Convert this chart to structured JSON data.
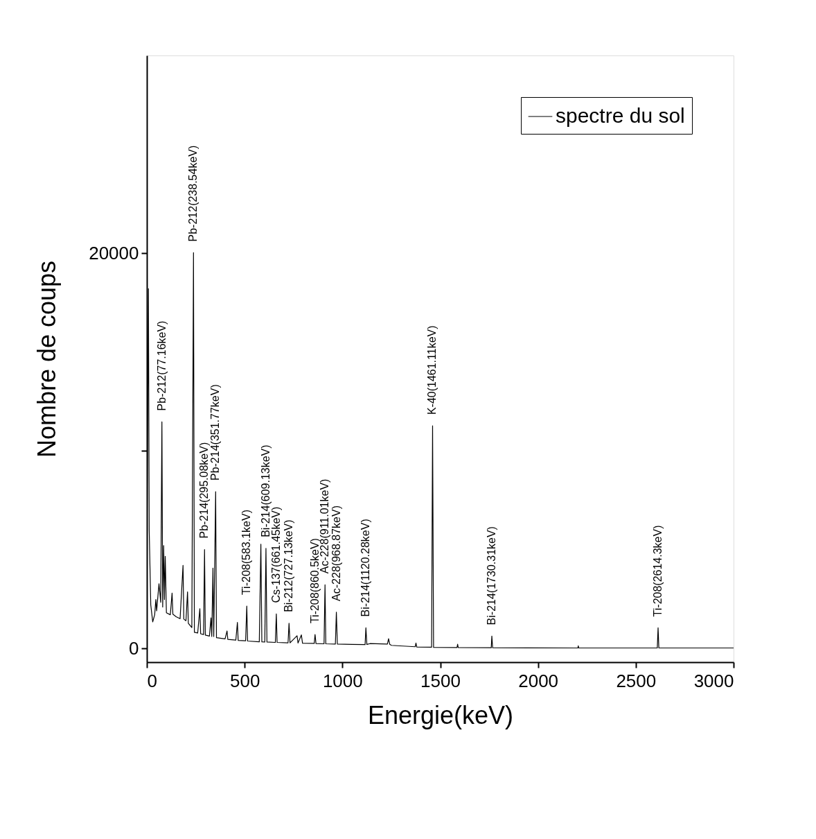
{
  "chart_data": {
    "type": "line",
    "xlabel": "Energie(keV)",
    "ylabel": "Nombre de coups",
    "xlim": [
      0,
      3000
    ],
    "xticks": [
      0,
      500,
      1000,
      1500,
      2000,
      2500,
      3000
    ],
    "ylim": [
      -700,
      30000
    ],
    "yticks": [
      0,
      {
        "value": 10000,
        "label": null
      },
      20000
    ],
    "grid": false,
    "legend": "top right",
    "marker": "none",
    "line_style": "solid",
    "series": [
      {
        "name": "spectre du sol",
        "color": "#000000",
        "x": [
          0,
          8,
          12,
          20,
          30,
          40,
          46,
          50,
          62,
          71,
          77,
          81,
          86,
          90,
          94,
          100,
          120,
          129,
          133,
          150,
          170,
          185,
          189,
          200,
          208,
          212,
          230,
          238.5,
          243,
          260,
          271,
          275,
          290,
          295,
          299,
          320,
          328,
          332,
          338,
          342,
          351.8,
          356,
          400,
          410,
          414,
          455,
          463,
          467,
          505,
          511,
          515,
          575,
          583,
          588,
          603,
          609,
          614,
          657,
          662,
          666,
          722,
          727,
          732,
          768,
          773,
          790,
          796,
          856,
          860,
          865,
          906,
          911,
          915,
          964,
          969,
          974,
          1050,
          1116,
          1120,
          1125,
          1141,
          1230,
          1236,
          1242,
          1251,
          1372,
          1376,
          1380,
          1456,
          1461,
          1466,
          1586,
          1589,
          1592,
          1761,
          1764,
          1768,
          2204,
          2206,
          2208,
          2610,
          2614,
          2618,
          3000
        ],
        "values": [
          4300,
          18200,
          6000,
          2200,
          1340,
          1700,
          2470,
          1900,
          3270,
          2330,
          11460,
          2090,
          5200,
          2470,
          4660,
          1800,
          1700,
          2800,
          1730,
          1600,
          1500,
          4200,
          1480,
          1400,
          2860,
          1270,
          1050,
          20020,
          810,
          780,
          2010,
          740,
          700,
          5000,
          670,
          620,
          1540,
          600,
          4060,
          600,
          7930,
          540,
          480,
          880,
          450,
          420,
          1310,
          400,
          380,
          2140,
          370,
          330,
          5270,
          330,
          320,
          5060,
          320,
          300,
          1740,
          300,
          280,
          1270,
          280,
          640,
          270,
          680,
          260,
          250,
          700,
          240,
          230,
          3220,
          230,
          220,
          1830,
          220,
          200,
          190,
          1040,
          200,
          240,
          220,
          490,
          200,
          150,
          80,
          270,
          70,
          60,
          11260,
          50,
          40,
          210,
          40,
          30,
          620,
          30,
          20,
          130,
          20,
          20,
          1040,
          20,
          20
        ]
      }
    ],
    "annotations": [
      {
        "text": "Pb-212(77.16keV)",
        "x": 77,
        "y": 11460
      },
      {
        "text": "Pb-212(238.54keV)",
        "x": 238.5,
        "y": 20020
      },
      {
        "text": "Pb-214(295.08keV)",
        "x": 295,
        "y": 5000
      },
      {
        "text": "Pb-214(351.77keV)",
        "x": 351.8,
        "y": 7930
      },
      {
        "text": "Ti-208(583.1keV)",
        "x": 511,
        "y": 2140
      },
      {
        "text": "Bi-214(609.13keV)",
        "x": 609,
        "y": 5060
      },
      {
        "text": "Cs-137(661.45keV)",
        "x": 662,
        "y": 1740
      },
      {
        "text": "Bi-212(727.13keV)",
        "x": 727,
        "y": 1270
      },
      {
        "text": "Ti-208(860.5keV)",
        "x": 860,
        "y": 700
      },
      {
        "text": "Ac-228(911.01keV)",
        "x": 911,
        "y": 3220
      },
      {
        "text": "Ac-228(968.87keV)",
        "x": 969,
        "y": 1830
      },
      {
        "text": "Bi-214(1120.28keV)",
        "x": 1120,
        "y": 1040
      },
      {
        "text": "K-40(1461.11keV)",
        "x": 1461,
        "y": 11260
      },
      {
        "text": "Bi-214(1730.31keV)",
        "x": 1764,
        "y": 620
      },
      {
        "text": "Ti-208(2614.3keV)",
        "x": 2614,
        "y": 1040
      }
    ]
  }
}
